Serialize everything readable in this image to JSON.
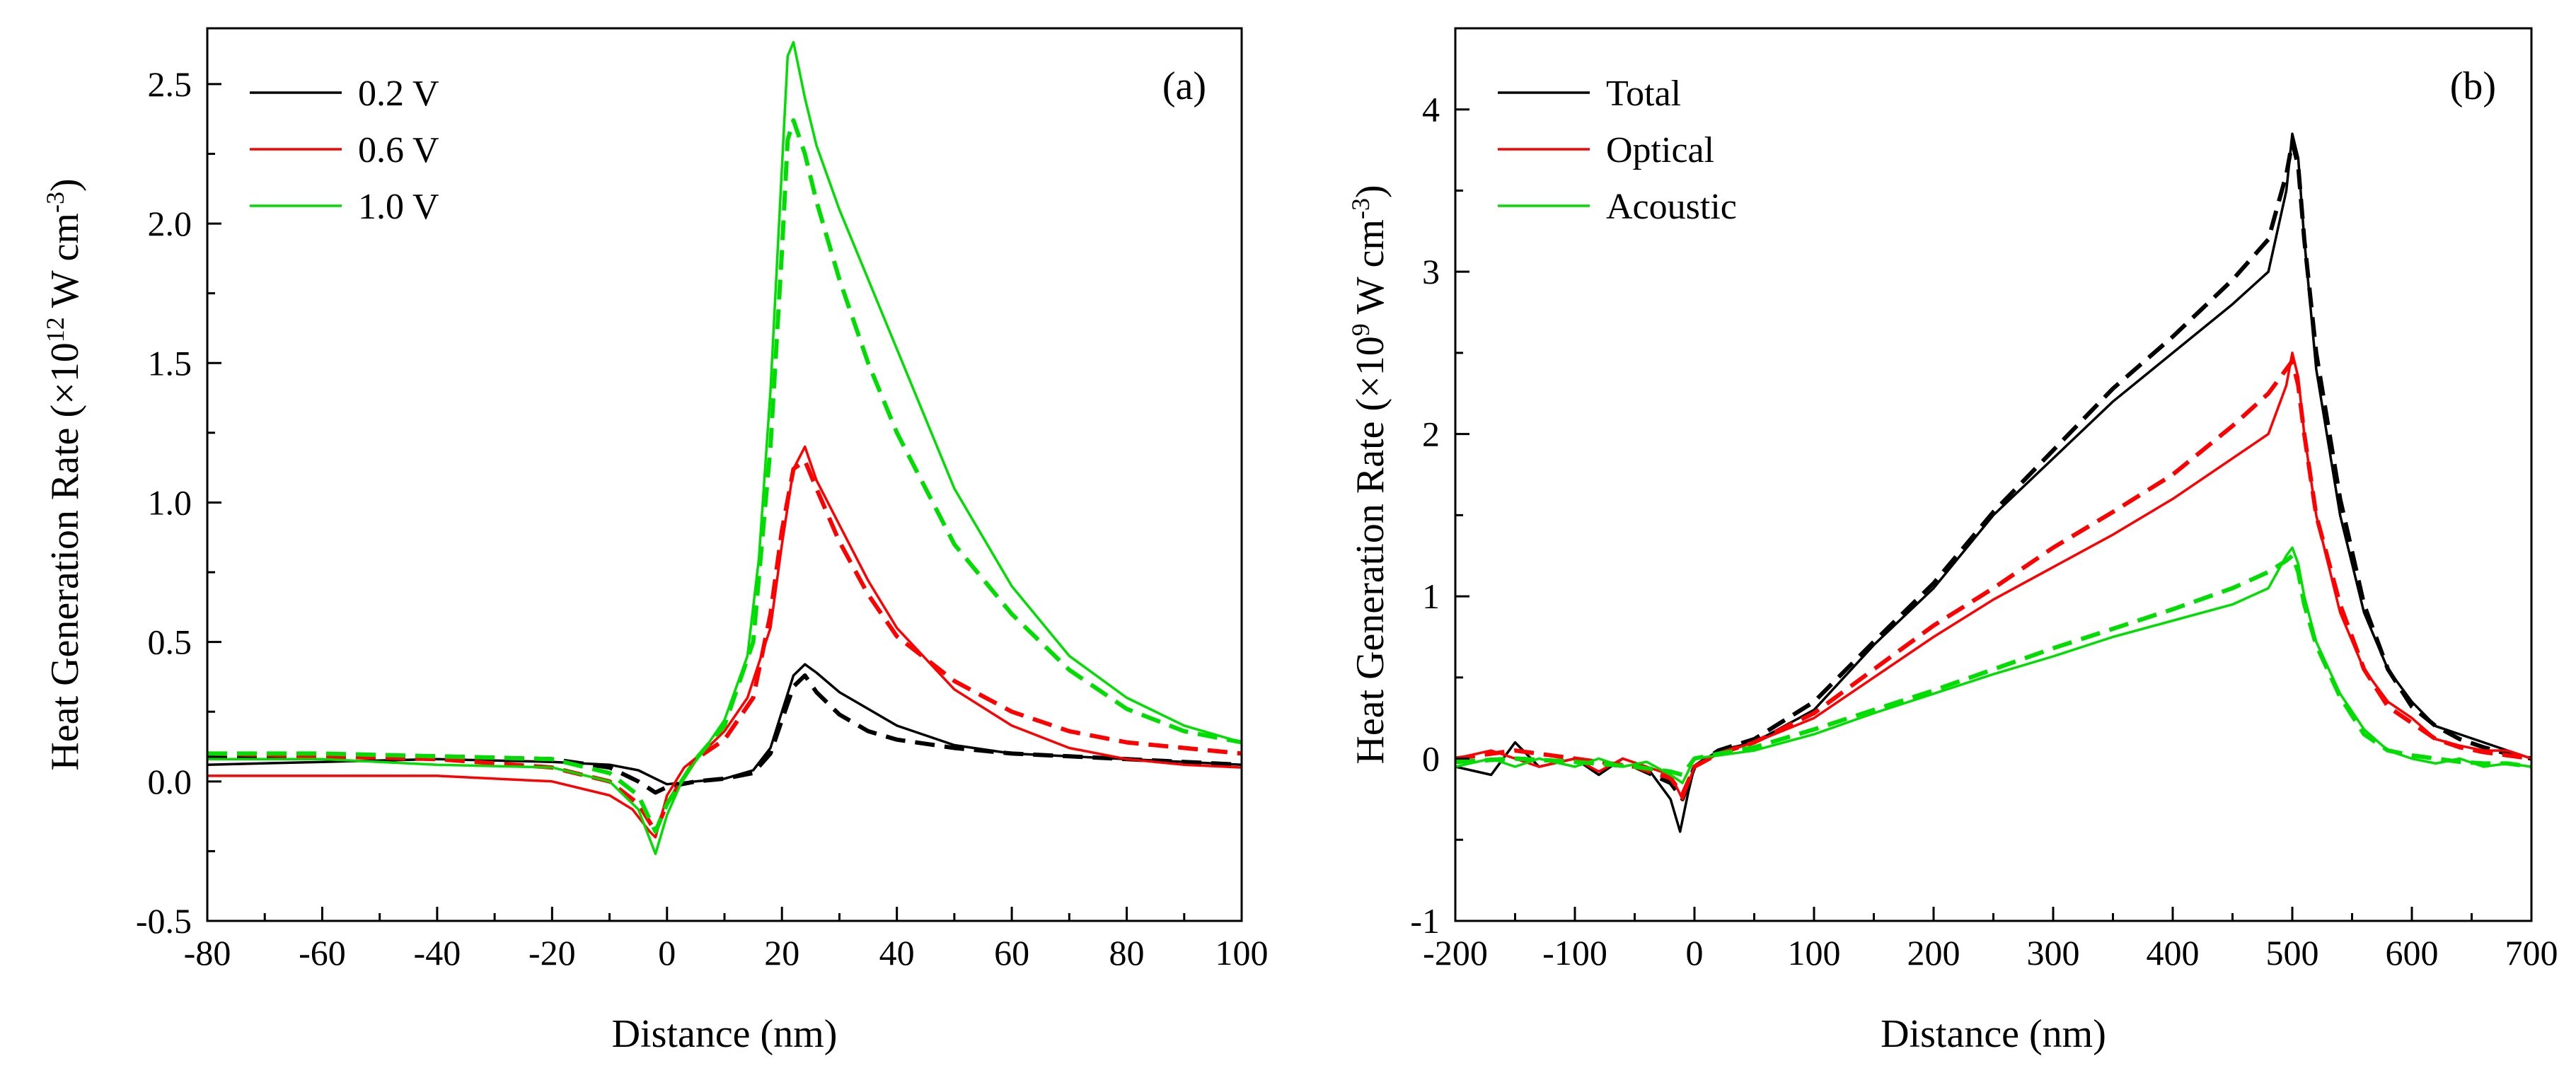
{
  "chart_data": [
    {
      "type": "line",
      "panel_label": "(a)",
      "xlabel": "Distance (nm)",
      "ylabel_parts": [
        "Heat Generation Rate (×10",
        "12",
        " W cm",
        "-3",
        ")"
      ],
      "xlim": [
        -80,
        100
      ],
      "ylim": [
        -0.5,
        2.7
      ],
      "xticks": [
        -80,
        -60,
        -40,
        -20,
        0,
        20,
        40,
        60,
        80,
        100
      ],
      "xtick_labels": [
        "-80",
        "-60",
        "-40",
        "-20",
        "0",
        "20",
        "40",
        "60",
        "80",
        "100"
      ],
      "yticks": [
        -0.5,
        0.0,
        0.5,
        1.0,
        1.5,
        2.0,
        2.5
      ],
      "ytick_labels": [
        "-0.5",
        "0.0",
        "0.5",
        "1.0",
        "1.5",
        "2.0",
        "2.5"
      ],
      "legend": [
        "0.2 V",
        "0.6 V",
        "1.0 V"
      ],
      "legend_position": "top-left",
      "series": [
        {
          "name": "0.2 V",
          "color": "#000000",
          "style": "solid",
          "x": [
            -80,
            -60,
            -40,
            -20,
            -10,
            -5,
            -2,
            0,
            5,
            10,
            15,
            18,
            20,
            22,
            24,
            26,
            30,
            35,
            40,
            50,
            60,
            70,
            80,
            90,
            100
          ],
          "y": [
            0.06,
            0.07,
            0.08,
            0.07,
            0.06,
            0.04,
            0.01,
            -0.01,
            0.0,
            0.01,
            0.04,
            0.12,
            0.25,
            0.38,
            0.42,
            0.39,
            0.32,
            0.26,
            0.2,
            0.13,
            0.1,
            0.09,
            0.08,
            0.07,
            0.06
          ]
        },
        {
          "name": "0.2 V",
          "color": "#000000",
          "style": "dashed",
          "x": [
            -80,
            -60,
            -40,
            -20,
            -10,
            -5,
            -2,
            0,
            5,
            10,
            15,
            18,
            20,
            22,
            24,
            26,
            30,
            35,
            40,
            50,
            60,
            70,
            80,
            90,
            100
          ],
          "y": [
            0.09,
            0.09,
            0.09,
            0.08,
            0.05,
            0.0,
            -0.04,
            -0.02,
            0.0,
            0.01,
            0.03,
            0.1,
            0.22,
            0.34,
            0.38,
            0.32,
            0.24,
            0.18,
            0.15,
            0.12,
            0.1,
            0.09,
            0.08,
            0.07,
            0.06
          ]
        },
        {
          "name": "0.6 V",
          "color": "#ff0000",
          "style": "solid",
          "x": [
            -80,
            -60,
            -40,
            -20,
            -10,
            -6,
            -3,
            -2,
            0,
            3,
            6,
            10,
            14,
            18,
            20,
            22,
            24,
            26,
            30,
            35,
            40,
            50,
            60,
            70,
            80,
            90,
            100
          ],
          "y": [
            0.02,
            0.02,
            0.02,
            0.0,
            -0.05,
            -0.1,
            -0.18,
            -0.2,
            -0.05,
            0.05,
            0.1,
            0.18,
            0.3,
            0.55,
            0.85,
            1.12,
            1.2,
            1.08,
            0.92,
            0.72,
            0.55,
            0.33,
            0.2,
            0.12,
            0.08,
            0.06,
            0.05
          ]
        },
        {
          "name": "0.6 V",
          "color": "#ff0000",
          "style": "dashed",
          "x": [
            -80,
            -60,
            -40,
            -20,
            -10,
            -5,
            -2,
            0,
            5,
            10,
            15,
            18,
            20,
            22,
            24,
            26,
            30,
            35,
            40,
            50,
            60,
            70,
            80,
            90,
            100
          ],
          "y": [
            0.1,
            0.09,
            0.08,
            0.05,
            0.0,
            -0.08,
            -0.18,
            -0.08,
            0.08,
            0.15,
            0.3,
            0.6,
            0.9,
            1.12,
            1.15,
            1.05,
            0.86,
            0.67,
            0.52,
            0.36,
            0.25,
            0.18,
            0.14,
            0.12,
            0.1
          ]
        },
        {
          "name": "1.0 V",
          "color": "#00dd00",
          "style": "solid",
          "x": [
            -80,
            -60,
            -40,
            -20,
            -10,
            -5,
            -2,
            0,
            3,
            6,
            10,
            14,
            16,
            18,
            20,
            21,
            22,
            24,
            26,
            30,
            35,
            40,
            50,
            60,
            70,
            80,
            90,
            100
          ],
          "y": [
            0.08,
            0.08,
            0.06,
            0.05,
            0.0,
            -0.1,
            -0.26,
            -0.12,
            0.02,
            0.1,
            0.22,
            0.45,
            0.8,
            1.4,
            2.2,
            2.6,
            2.65,
            2.45,
            2.28,
            2.05,
            1.8,
            1.55,
            1.05,
            0.7,
            0.45,
            0.3,
            0.2,
            0.14
          ]
        },
        {
          "name": "1.0 V",
          "color": "#00dd00",
          "style": "dashed",
          "x": [
            -80,
            -60,
            -40,
            -20,
            -10,
            -5,
            -2,
            0,
            5,
            10,
            15,
            18,
            20,
            21,
            22,
            24,
            26,
            30,
            35,
            40,
            50,
            60,
            70,
            80,
            90,
            100
          ],
          "y": [
            0.1,
            0.1,
            0.09,
            0.08,
            0.03,
            -0.05,
            -0.18,
            -0.08,
            0.08,
            0.2,
            0.5,
            1.2,
            1.9,
            2.3,
            2.37,
            2.25,
            2.08,
            1.8,
            1.5,
            1.25,
            0.85,
            0.6,
            0.4,
            0.26,
            0.18,
            0.14
          ]
        }
      ]
    },
    {
      "type": "line",
      "panel_label": "(b)",
      "xlabel": "Distance (nm)",
      "ylabel_parts": [
        "Heat Generation Rate (×10",
        "9",
        " W cm",
        "-3",
        ")"
      ],
      "xlim": [
        -200,
        700
      ],
      "ylim": [
        -1,
        4.5
      ],
      "xticks": [
        -200,
        -100,
        0,
        100,
        200,
        300,
        400,
        500,
        600,
        700
      ],
      "xtick_labels": [
        "-200",
        "-100",
        "0",
        "100",
        "200",
        "300",
        "400",
        "500",
        "600",
        "700"
      ],
      "yticks": [
        -1,
        0,
        1,
        2,
        3,
        4
      ],
      "ytick_labels": [
        "-1",
        "0",
        "1",
        "2",
        "3",
        "4"
      ],
      "legend": [
        "Total",
        "Optical",
        "Acoustic"
      ],
      "legend_position": "top-left",
      "series": [
        {
          "name": "Total",
          "color": "#000000",
          "style": "solid",
          "x": [
            -200,
            -170,
            -150,
            -130,
            -100,
            -80,
            -60,
            -40,
            -20,
            -12,
            -5,
            0,
            20,
            50,
            100,
            150,
            200,
            250,
            300,
            350,
            400,
            450,
            480,
            495,
            500,
            505,
            510,
            520,
            540,
            560,
            580,
            600,
            620,
            640,
            660,
            680,
            700
          ],
          "y": [
            -0.05,
            -0.1,
            0.1,
            -0.05,
            0.0,
            -0.1,
            0.0,
            -0.05,
            -0.25,
            -0.45,
            -0.2,
            -0.05,
            0.05,
            0.1,
            0.3,
            0.7,
            1.05,
            1.5,
            1.85,
            2.2,
            2.5,
            2.8,
            3.0,
            3.5,
            3.85,
            3.7,
            3.2,
            2.4,
            1.5,
            0.9,
            0.55,
            0.35,
            0.2,
            0.15,
            0.1,
            0.05,
            0.0
          ]
        },
        {
          "name": "Total",
          "color": "#000000",
          "style": "dashed",
          "x": [
            -200,
            -150,
            -100,
            -50,
            -20,
            -10,
            0,
            20,
            50,
            100,
            150,
            200,
            250,
            300,
            350,
            400,
            450,
            480,
            495,
            500,
            505,
            510,
            520,
            540,
            560,
            580,
            600,
            620,
            640,
            660,
            680,
            700
          ],
          "y": [
            -0.02,
            0.0,
            -0.02,
            -0.05,
            -0.15,
            -0.25,
            -0.05,
            0.05,
            0.12,
            0.35,
            0.72,
            1.08,
            1.52,
            1.9,
            2.28,
            2.6,
            2.95,
            3.2,
            3.6,
            3.8,
            3.65,
            3.2,
            2.5,
            1.6,
            0.95,
            0.55,
            0.32,
            0.2,
            0.12,
            0.07,
            0.03,
            0.0
          ]
        },
        {
          "name": "Optical",
          "color": "#ff0000",
          "style": "solid",
          "x": [
            -200,
            -170,
            -150,
            -130,
            -100,
            -80,
            -60,
            -40,
            -20,
            -10,
            0,
            20,
            50,
            100,
            150,
            200,
            250,
            300,
            350,
            400,
            450,
            480,
            495,
            500,
            505,
            510,
            520,
            540,
            560,
            580,
            600,
            620,
            640,
            660,
            680,
            700
          ],
          "y": [
            0.0,
            0.05,
            0.0,
            -0.05,
            0.0,
            -0.08,
            0.0,
            -0.05,
            -0.1,
            -0.25,
            -0.05,
            0.03,
            0.1,
            0.25,
            0.5,
            0.75,
            0.98,
            1.18,
            1.38,
            1.6,
            1.85,
            2.0,
            2.3,
            2.5,
            2.35,
            2.0,
            1.5,
            0.9,
            0.55,
            0.35,
            0.25,
            0.12,
            0.08,
            0.05,
            0.05,
            0.0
          ]
        },
        {
          "name": "Optical",
          "color": "#ff0000",
          "style": "dashed",
          "x": [
            -200,
            -150,
            -100,
            -50,
            -20,
            -10,
            0,
            20,
            50,
            100,
            150,
            200,
            250,
            300,
            350,
            400,
            450,
            480,
            495,
            500,
            505,
            510,
            520,
            540,
            560,
            580,
            600,
            620,
            640,
            660,
            680,
            700
          ],
          "y": [
            0.0,
            0.05,
            0.0,
            -0.05,
            -0.12,
            -0.22,
            -0.05,
            0.03,
            0.1,
            0.28,
            0.55,
            0.82,
            1.05,
            1.3,
            1.52,
            1.75,
            2.05,
            2.25,
            2.4,
            2.45,
            2.3,
            2.0,
            1.5,
            0.95,
            0.55,
            0.32,
            0.22,
            0.12,
            0.07,
            0.04,
            0.02,
            0.0
          ]
        },
        {
          "name": "Acoustic",
          "color": "#00dd00",
          "style": "solid",
          "x": [
            -200,
            -170,
            -150,
            -130,
            -100,
            -80,
            -60,
            -40,
            -20,
            -10,
            0,
            20,
            50,
            100,
            150,
            200,
            250,
            300,
            350,
            400,
            450,
            480,
            495,
            500,
            505,
            510,
            520,
            540,
            560,
            580,
            600,
            620,
            640,
            660,
            680,
            700
          ],
          "y": [
            -0.05,
            0.0,
            -0.05,
            0.0,
            -0.05,
            0.0,
            -0.05,
            -0.02,
            -0.1,
            -0.15,
            0.0,
            0.02,
            0.05,
            0.15,
            0.28,
            0.4,
            0.52,
            0.63,
            0.75,
            0.85,
            0.95,
            1.05,
            1.25,
            1.3,
            1.2,
            1.0,
            0.72,
            0.4,
            0.18,
            0.05,
            0.0,
            -0.03,
            0.0,
            -0.05,
            -0.03,
            -0.05
          ]
        },
        {
          "name": "Acoustic",
          "color": "#00dd00",
          "style": "dashed",
          "x": [
            -200,
            -150,
            -100,
            -50,
            -20,
            -10,
            0,
            20,
            50,
            100,
            150,
            200,
            250,
            300,
            350,
            400,
            450,
            480,
            495,
            500,
            505,
            510,
            520,
            540,
            560,
            580,
            600,
            620,
            640,
            660,
            680,
            700
          ],
          "y": [
            -0.02,
            0.0,
            -0.02,
            -0.05,
            -0.08,
            -0.1,
            0.0,
            0.03,
            0.07,
            0.18,
            0.3,
            0.42,
            0.55,
            0.68,
            0.8,
            0.92,
            1.05,
            1.15,
            1.22,
            1.25,
            1.15,
            0.95,
            0.7,
            0.38,
            0.15,
            0.05,
            0.02,
            0.0,
            -0.02,
            -0.03,
            -0.03,
            -0.05
          ]
        }
      ]
    }
  ]
}
